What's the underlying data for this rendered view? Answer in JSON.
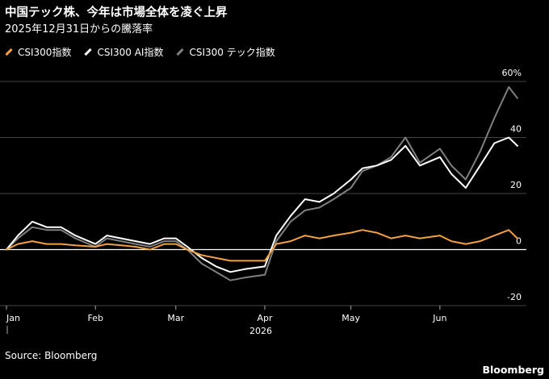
{
  "header": {
    "title": "中国テック株、今年は市場全体を凌ぐ上昇",
    "subtitle": "2025年12月31日からの騰落率"
  },
  "legend": {
    "items": [
      {
        "label": "CSI300指数",
        "color": "#f2a040"
      },
      {
        "label": "CSI300 AI指数",
        "color": "#ffffff"
      },
      {
        "label": "CSI300 テック指数",
        "color": "#7f7f7f"
      }
    ]
  },
  "footer": {
    "source": "Source: Bloomberg",
    "brand": "Bloomberg"
  },
  "chart_data": {
    "type": "line",
    "title": "中国テック株、今年は市場全体を凌ぐ上昇",
    "subtitle": "2025年12月31日からの騰落率",
    "x_ticks": [
      "Jan",
      "Feb",
      "Mar",
      "Apr",
      "May",
      "Jun"
    ],
    "x_year_label": "2026",
    "y_ticks": [
      "60%",
      "40",
      "20",
      "0",
      "-20"
    ],
    "ylim": [
      -20,
      60
    ],
    "grid": true,
    "legend_position": "top-left",
    "x": [
      "2026-01-01",
      "2026-01-05",
      "2026-01-10",
      "2026-01-15",
      "2026-01-20",
      "2026-01-25",
      "2026-02-01",
      "2026-02-05",
      "2026-02-10",
      "2026-02-15",
      "2026-02-20",
      "2026-02-25",
      "2026-03-01",
      "2026-03-05",
      "2026-03-10",
      "2026-03-15",
      "2026-03-20",
      "2026-03-25",
      "2026-04-01",
      "2026-04-05",
      "2026-04-10",
      "2026-04-15",
      "2026-04-20",
      "2026-04-25",
      "2026-05-01",
      "2026-05-05",
      "2026-05-10",
      "2026-05-15",
      "2026-05-20",
      "2026-05-25",
      "2026-06-01",
      "2026-06-05",
      "2026-06-10",
      "2026-06-15",
      "2026-06-20",
      "2026-06-25",
      "2026-06-28"
    ],
    "series": [
      {
        "name": "CSI300指数",
        "color": "#f2a040",
        "values": [
          0,
          2,
          3,
          2,
          2,
          1.5,
          1,
          2,
          1.5,
          1,
          0,
          2,
          2,
          0,
          -2,
          -3,
          -4,
          -4,
          -4,
          2,
          3,
          5,
          4,
          5,
          6,
          7,
          6,
          4,
          5,
          4,
          5,
          3,
          2,
          3,
          5,
          7,
          4
        ]
      },
      {
        "name": "CSI300 AI指数",
        "color": "#ffffff",
        "values": [
          0,
          5,
          10,
          8,
          8,
          5,
          2,
          5,
          4,
          3,
          2,
          4,
          4,
          1,
          -3,
          -6,
          -8,
          -7,
          -6,
          5,
          12,
          18,
          17,
          20,
          25,
          29,
          30,
          32,
          37,
          30,
          33,
          27,
          22,
          30,
          38,
          40,
          37
        ]
      },
      {
        "name": "CSI300 テック指数",
        "color": "#7f7f7f",
        "values": [
          0,
          4,
          8,
          7,
          7,
          4,
          1,
          4,
          3,
          2,
          1,
          3,
          3,
          0,
          -5,
          -8,
          -11,
          -10,
          -9,
          3,
          10,
          14,
          15,
          18,
          22,
          28,
          30,
          33,
          40,
          31,
          36,
          30,
          25,
          35,
          47,
          58,
          54
        ]
      }
    ]
  }
}
